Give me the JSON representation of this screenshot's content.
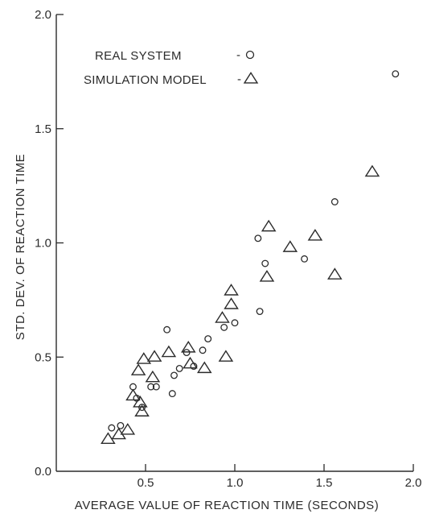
{
  "chart_data": {
    "type": "scatter",
    "xlabel": "AVERAGE VALUE OF REACTION TIME (SECONDS)",
    "ylabel": "STD. DEV. OF REACTION TIME",
    "xlim": [
      0.0,
      2.0
    ],
    "ylim": [
      0.0,
      2.0
    ],
    "xticks": [
      0.5,
      1.0,
      1.5,
      2.0
    ],
    "xtick_labels": [
      "0.5",
      "1.0",
      "1.5",
      "2.0"
    ],
    "yticks": [
      0.0,
      0.5,
      1.0,
      1.5,
      2.0
    ],
    "ytick_labels": [
      "0.0",
      "0.5",
      "1.0",
      "1.5",
      "2.0"
    ],
    "origin_label": "0.0",
    "grid": false,
    "legend_position": "top-left",
    "series": [
      {
        "name": "REAL SYSTEM",
        "legend_label": "REAL SYSTEM",
        "legend_marker_text": "-",
        "marker": "circle",
        "points": [
          [
            0.31,
            0.19
          ],
          [
            0.36,
            0.2
          ],
          [
            0.43,
            0.37
          ],
          [
            0.45,
            0.32
          ],
          [
            0.48,
            0.28
          ],
          [
            0.53,
            0.37
          ],
          [
            0.56,
            0.37
          ],
          [
            0.62,
            0.62
          ],
          [
            0.65,
            0.34
          ],
          [
            0.66,
            0.42
          ],
          [
            0.69,
            0.45
          ],
          [
            0.73,
            0.52
          ],
          [
            0.77,
            0.46
          ],
          [
            0.82,
            0.53
          ],
          [
            0.85,
            0.58
          ],
          [
            0.94,
            0.63
          ],
          [
            1.0,
            0.65
          ],
          [
            1.13,
            1.02
          ],
          [
            1.14,
            0.7
          ],
          [
            1.17,
            0.91
          ],
          [
            1.39,
            0.93
          ],
          [
            1.56,
            1.18
          ],
          [
            1.9,
            1.74
          ]
        ]
      },
      {
        "name": "SIMULATION MODEL",
        "legend_label": "SIMULATION MODEL",
        "legend_marker_text": "-",
        "marker": "triangle",
        "points": [
          [
            0.29,
            0.14
          ],
          [
            0.35,
            0.16
          ],
          [
            0.4,
            0.18
          ],
          [
            0.43,
            0.33
          ],
          [
            0.46,
            0.44
          ],
          [
            0.47,
            0.3
          ],
          [
            0.48,
            0.26
          ],
          [
            0.49,
            0.49
          ],
          [
            0.54,
            0.41
          ],
          [
            0.55,
            0.5
          ],
          [
            0.63,
            0.52
          ],
          [
            0.74,
            0.54
          ],
          [
            0.75,
            0.47
          ],
          [
            0.83,
            0.45
          ],
          [
            0.93,
            0.67
          ],
          [
            0.95,
            0.5
          ],
          [
            0.98,
            0.79
          ],
          [
            0.98,
            0.73
          ],
          [
            1.18,
            0.85
          ],
          [
            1.19,
            1.07
          ],
          [
            1.31,
            0.98
          ],
          [
            1.45,
            1.03
          ],
          [
            1.56,
            0.86
          ],
          [
            1.77,
            1.31
          ]
        ]
      }
    ]
  }
}
